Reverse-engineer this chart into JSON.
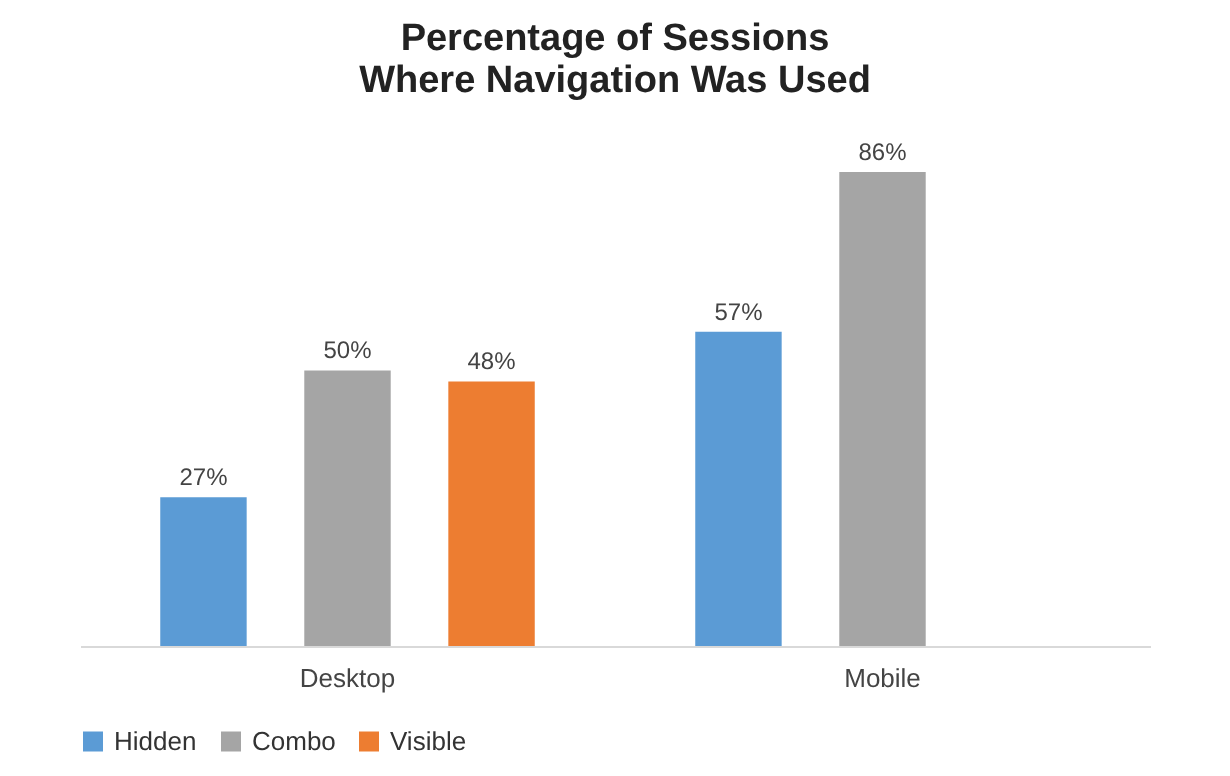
{
  "chart_data": {
    "type": "bar",
    "title": [
      "Percentage of Sessions",
      "Where Navigation Was Used"
    ],
    "categories": [
      "Desktop",
      "Mobile"
    ],
    "series": [
      {
        "name": "Hidden",
        "color": "#5b9bd5",
        "values": [
          27,
          57
        ],
        "value_labels": [
          "27%",
          "57%"
        ]
      },
      {
        "name": "Combo",
        "color": "#a5a5a5",
        "values": [
          50,
          86
        ],
        "value_labels": [
          "50%",
          "86%"
        ]
      },
      {
        "name": "Visible",
        "color": "#ed7d31",
        "values": [
          48,
          null
        ],
        "value_labels": [
          "48%",
          null
        ]
      }
    ],
    "legend": "bottom",
    "grid": false
  }
}
